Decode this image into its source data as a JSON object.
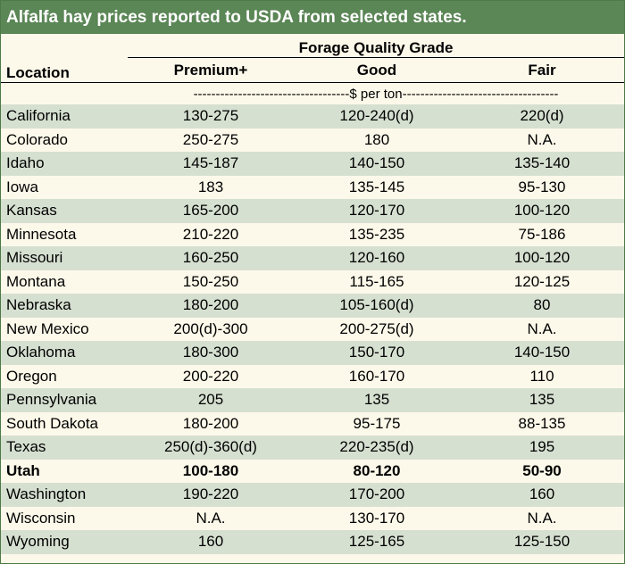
{
  "title": "Alfalfa hay prices reported to USDA from selected states.",
  "header": {
    "group_label": "Forage Quality Grade",
    "location_label": "Location",
    "columns": [
      "Premium+",
      "Good",
      "Fair"
    ],
    "units": "-----------------------------------$ per ton-----------------------------------"
  },
  "rows": [
    {
      "location": "California",
      "premium": "130-275",
      "good": "120-240(d)",
      "fair": "220(d)",
      "bold": false
    },
    {
      "location": "Colorado",
      "premium": "250-275",
      "good": "180",
      "fair": "N.A.",
      "bold": false
    },
    {
      "location": "Idaho",
      "premium": "145-187",
      "good": "140-150",
      "fair": "135-140",
      "bold": false
    },
    {
      "location": "Iowa",
      "premium": "183",
      "good": "135-145",
      "fair": "95-130",
      "bold": false
    },
    {
      "location": "Kansas",
      "premium": "165-200",
      "good": "120-170",
      "fair": "100-120",
      "bold": false
    },
    {
      "location": "Minnesota",
      "premium": "210-220",
      "good": "135-235",
      "fair": "75-186",
      "bold": false
    },
    {
      "location": "Missouri",
      "premium": "160-250",
      "good": "120-160",
      "fair": "100-120",
      "bold": false
    },
    {
      "location": "Montana",
      "premium": "150-250",
      "good": "115-165",
      "fair": "120-125",
      "bold": false
    },
    {
      "location": "Nebraska",
      "premium": "180-200",
      "good": "105-160(d)",
      "fair": "80",
      "bold": false
    },
    {
      "location": "New Mexico",
      "premium": "200(d)-300",
      "good": "200-275(d)",
      "fair": "N.A.",
      "bold": false
    },
    {
      "location": "Oklahoma",
      "premium": "180-300",
      "good": "150-170",
      "fair": "140-150",
      "bold": false
    },
    {
      "location": "Oregon",
      "premium": "200-220",
      "good": "160-170",
      "fair": "110",
      "bold": false
    },
    {
      "location": "Pennsylvania",
      "premium": "205",
      "good": "135",
      "fair": "135",
      "bold": false
    },
    {
      "location": "South Dakota",
      "premium": "180-200",
      "good": "95-175",
      "fair": "88-135",
      "bold": false
    },
    {
      "location": "Texas",
      "premium": "250(d)-360(d)",
      "good": "220-235(d)",
      "fair": "195",
      "bold": false
    },
    {
      "location": "Utah",
      "premium": "100-180",
      "good": "80-120",
      "fair": "50-90",
      "bold": true
    },
    {
      "location": "Washington",
      "premium": "190-220",
      "good": "170-200",
      "fair": "160",
      "bold": false
    },
    {
      "location": "Wisconsin",
      "premium": "N.A.",
      "good": "130-170",
      "fair": "N.A.",
      "bold": false
    },
    {
      "location": "Wyoming",
      "premium": "160",
      "good": "125-165",
      "fair": "125-150",
      "bold": false
    }
  ],
  "colors": {
    "title_bg": "#5b8656",
    "band_green": "#d6e0d1",
    "band_cream": "#fdf9ea"
  }
}
